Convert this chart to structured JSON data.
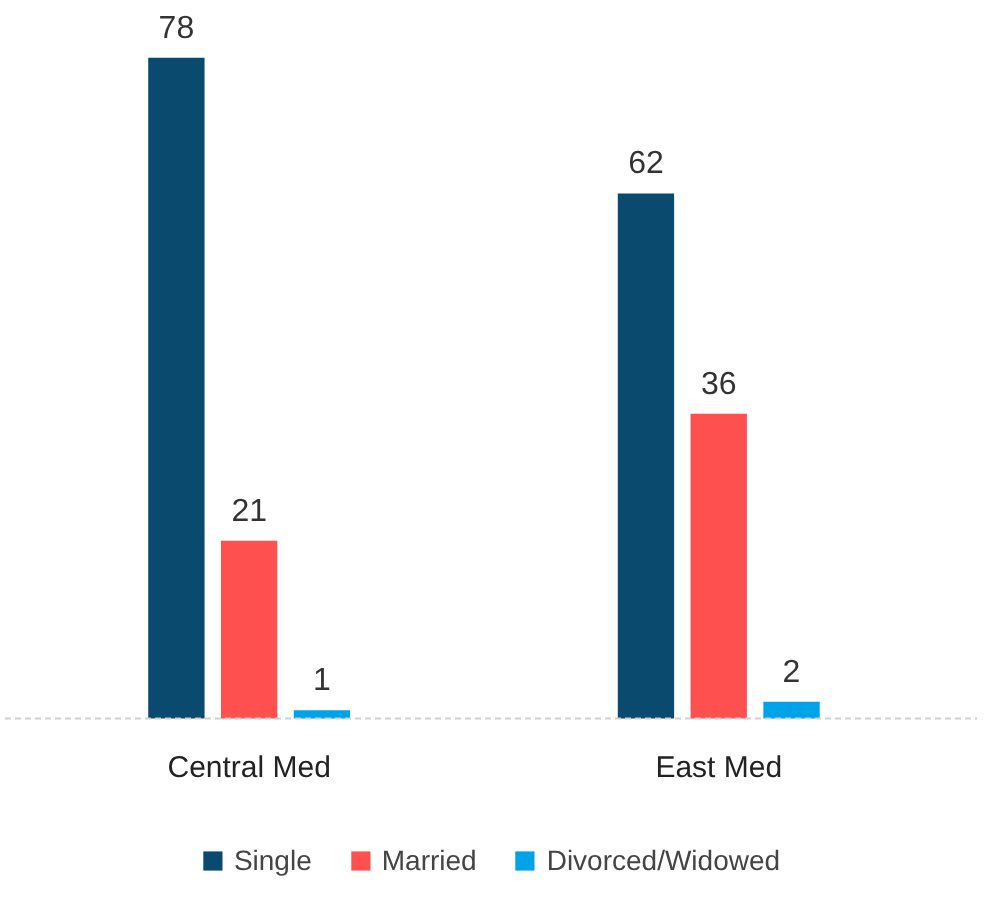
{
  "chart_data": {
    "type": "bar",
    "categories": [
      "Central Med",
      "East Med"
    ],
    "series": [
      {
        "name": "Single",
        "color": "#0b4a6f",
        "values": [
          78,
          62
        ]
      },
      {
        "name": "Married",
        "color": "#ff5050",
        "values": [
          21,
          36
        ]
      },
      {
        "name": "Divorced/Widowed",
        "color": "#00a2e8",
        "values": [
          1,
          2
        ]
      }
    ],
    "data_labels": true,
    "legend": "bottom",
    "grid": false
  }
}
